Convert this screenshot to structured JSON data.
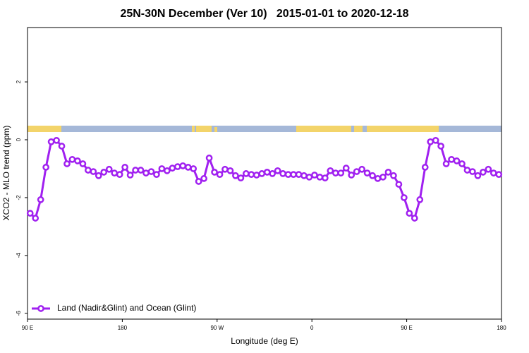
{
  "chart_data": {
    "type": "line",
    "title": "25N-30N December (Ver 10)   2015-01-01 to 2020-12-18",
    "x_label": "Longitude (deg E)",
    "y_label": "XCO2 - MLO trend (ppm)",
    "x": [
      92.5,
      97.5,
      102.5,
      107.5,
      112.5,
      117.5,
      122.5,
      127.5,
      132.5,
      137.5,
      142.5,
      147.5,
      152.5,
      157.5,
      162.5,
      167.5,
      172.5,
      177.5,
      182.5,
      187.5,
      192.5,
      197.5,
      202.5,
      207.5,
      212.5,
      217.5,
      222.5,
      227.5,
      232.5,
      237.5,
      242.5,
      247.5,
      252.5,
      257.5,
      262.5,
      267.5,
      272.5,
      277.5,
      282.5,
      287.5,
      292.5,
      297.5,
      302.5,
      307.5,
      312.5,
      317.5,
      322.5,
      327.5,
      332.5,
      337.5,
      342.5,
      347.5,
      352.5,
      357.5,
      362.5,
      367.5,
      372.5,
      377.5,
      382.5,
      387.5,
      392.5,
      397.5,
      402.5,
      407.5,
      412.5,
      417.5,
      422.5,
      427.5,
      432.5,
      437.5,
      442.5,
      447.5,
      452.5,
      457.5,
      462.5,
      467.5,
      472.5,
      477.5,
      482.5,
      487.5,
      492.5,
      497.5,
      502.5,
      507.5,
      512.5,
      517.5,
      522.5,
      527.5,
      532.5,
      537.5
    ],
    "series": [
      {
        "name": "Land (Nadir&Glint) and Ocean (Glint)",
        "color": "#a020f0",
        "values": [
          -2.54,
          -2.71,
          -2.07,
          -0.95,
          -0.07,
          -0.02,
          -0.22,
          -0.83,
          -0.68,
          -0.73,
          -0.83,
          -1.05,
          -1.1,
          -1.24,
          -1.12,
          -1.02,
          -1.15,
          -1.2,
          -0.95,
          -1.22,
          -1.05,
          -1.05,
          -1.15,
          -1.1,
          -1.2,
          -1.0,
          -1.07,
          -0.98,
          -0.93,
          -0.9,
          -0.95,
          -1.0,
          -1.44,
          -1.34,
          -0.63,
          -1.12,
          -1.2,
          -1.02,
          -1.07,
          -1.24,
          -1.32,
          -1.17,
          -1.2,
          -1.22,
          -1.17,
          -1.12,
          -1.17,
          -1.07,
          -1.17,
          -1.2,
          -1.2,
          -1.2,
          -1.24,
          -1.29,
          -1.22,
          -1.29,
          -1.32,
          -1.07,
          -1.15,
          -1.15,
          -0.98,
          -1.22,
          -1.1,
          -1.02,
          -1.15,
          -1.24,
          -1.34,
          -1.29,
          -1.12,
          -1.24,
          -1.54,
          -2.0,
          -2.54,
          -2.71,
          -2.07,
          -0.95,
          -0.07,
          -0.02,
          -0.22,
          -0.83,
          -0.68,
          -0.73,
          -0.83,
          -1.05,
          -1.1,
          -1.24,
          -1.12,
          -1.02,
          -1.15,
          -1.2
        ]
      }
    ],
    "xlim": [
      90,
      540
    ],
    "ylim": [
      -6.2,
      3.88
    ],
    "xticks": [
      {
        "value": 90,
        "label": "90 E"
      },
      180,
      {
        "value": 270,
        "label": "90 W"
      },
      {
        "value": 360,
        "label": "0"
      },
      {
        "value": 450,
        "label": "90 E"
      },
      {
        "value": 540,
        "label": "180"
      }
    ],
    "yticks": [
      -6,
      -4,
      -2,
      0,
      2
    ],
    "legend": "bottom-left"
  }
}
